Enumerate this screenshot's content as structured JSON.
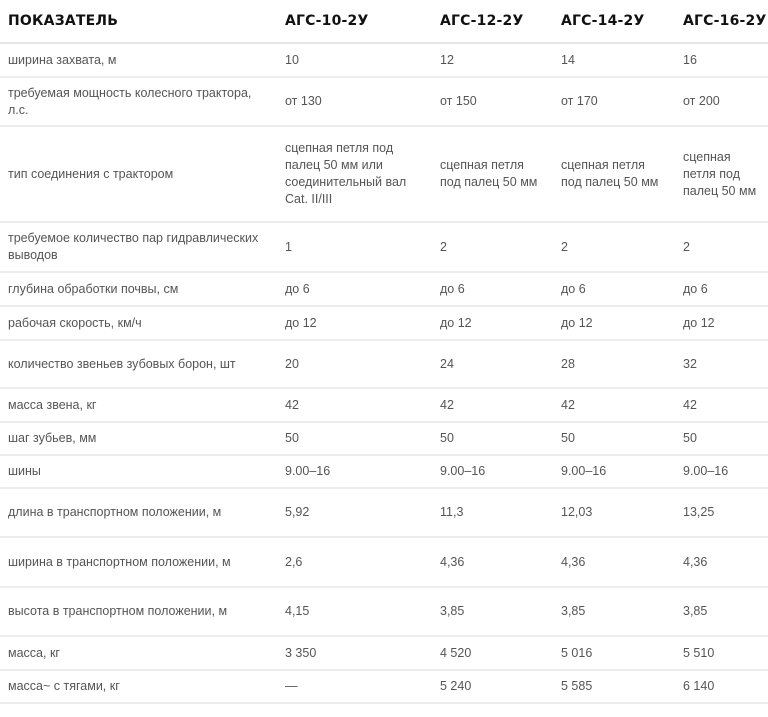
{
  "headers": [
    "ПОКАЗАТЕЛЬ",
    "АГС-10-2У",
    "АГС-12-2У",
    "АГС-14-2У",
    "АГС-16-2У"
  ],
  "rows": [
    {
      "label": "ширина захвата, м",
      "values": [
        "10",
        "12",
        "14",
        "16"
      ]
    },
    {
      "label": "требуемая мощность колесного трактора, л.с.",
      "values": [
        "от 130",
        "от 150",
        "от 170",
        "от 200"
      ]
    },
    {
      "label": "тип соединения с трактором",
      "values": [
        "сцепная петля под палец 50 мм или соединительный вал Cat. II/III",
        "сцепная петля под палец 50 мм",
        "сцепная петля под палец 50 мм",
        "сцепная петля под палец 50 мм"
      ]
    },
    {
      "label": "требуемое количество пар гидравлических выводов",
      "values": [
        "1",
        "2",
        "2",
        "2"
      ]
    },
    {
      "label": "глубина обработки почвы, см",
      "values": [
        "до 6",
        "до 6",
        "до 6",
        "до 6"
      ]
    },
    {
      "label": "рабочая скорость, км/ч",
      "values": [
        "до 12",
        "до 12",
        "до 12",
        "до 12"
      ]
    },
    {
      "label": "количество звеньев зубовых борон, шт",
      "values": [
        "20",
        "24",
        "28",
        "32"
      ]
    },
    {
      "label": "масса звена, кг",
      "values": [
        "42",
        "42",
        "42",
        "42"
      ]
    },
    {
      "label": "шаг зубьев, мм",
      "values": [
        "50",
        "50",
        "50",
        "50"
      ]
    },
    {
      "label": "шины",
      "values": [
        "9.00–16",
        "9.00–16",
        "9.00–16",
        "9.00–16"
      ]
    },
    {
      "label": "длина в транспортном положении, м",
      "values": [
        "5,92",
        "11,3",
        "12,03",
        "13,25"
      ]
    },
    {
      "label": "ширина в транспортном положении, м",
      "values": [
        "2,6",
        "4,36",
        "4,36",
        "4,36"
      ]
    },
    {
      "label": "высота в транспортном положении, м",
      "values": [
        "4,15",
        "3,85",
        "3,85",
        "3,85"
      ]
    },
    {
      "label": "масса, кг",
      "values": [
        "3 350",
        "4 520",
        "5 016",
        "5 510"
      ]
    },
    {
      "label": "масса~ с тягами, кг",
      "values": [
        "—",
        "5 240",
        "5 585",
        "6 140"
      ]
    }
  ]
}
